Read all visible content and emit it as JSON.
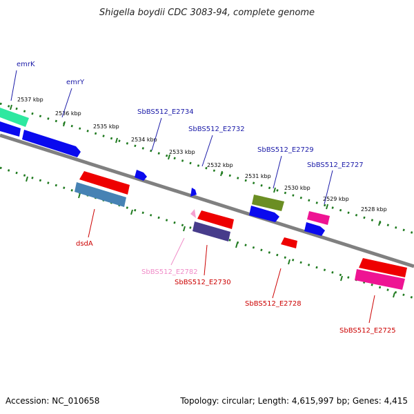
{
  "title": "Shigella boydii CDC 3083-94, complete genome",
  "footer": {
    "accession": "Accession: NC_010658",
    "summary": "Topology: circular; Length: 4,615,997 bp; Genes: 4,415"
  },
  "ticks": [
    "2537 kbp",
    "2536 kbp",
    "2535 kbp",
    "2534 kbp",
    "2533 kbp",
    "2532 kbp",
    "2531 kbp",
    "2530 kbp",
    "2529 kbp",
    "2528 kbp"
  ],
  "genes": {
    "emrK": "emrK",
    "emrY": "emrY",
    "e2734": "SbBS512_E2734",
    "e2732": "SbBS512_E2732",
    "e2729": "SbBS512_E2729",
    "e2727": "SbBS512_E2727",
    "dsdA": "dsdA",
    "e2782": "SbBS512_E2782",
    "e2730": "SbBS512_E2730",
    "e2728": "SbBS512_E2728",
    "e2725": "SbBS512_E2725"
  },
  "colors": {
    "backbone": "#808080",
    "dots": "#1f7a1f",
    "label_blue": "#1a1aa8",
    "label_red": "#cc0000",
    "label_pink": "#f08cc8",
    "gene_blue": "#0a0aee",
    "gene_red": "#ee0000",
    "gene_teal": "#2ee8a0",
    "gene_steel": "#4682b4",
    "gene_olive": "#6b8e23",
    "gene_magenta": "#ee1493",
    "gene_purple": "#473c8b",
    "gene_pink": "#f5a0d0"
  }
}
